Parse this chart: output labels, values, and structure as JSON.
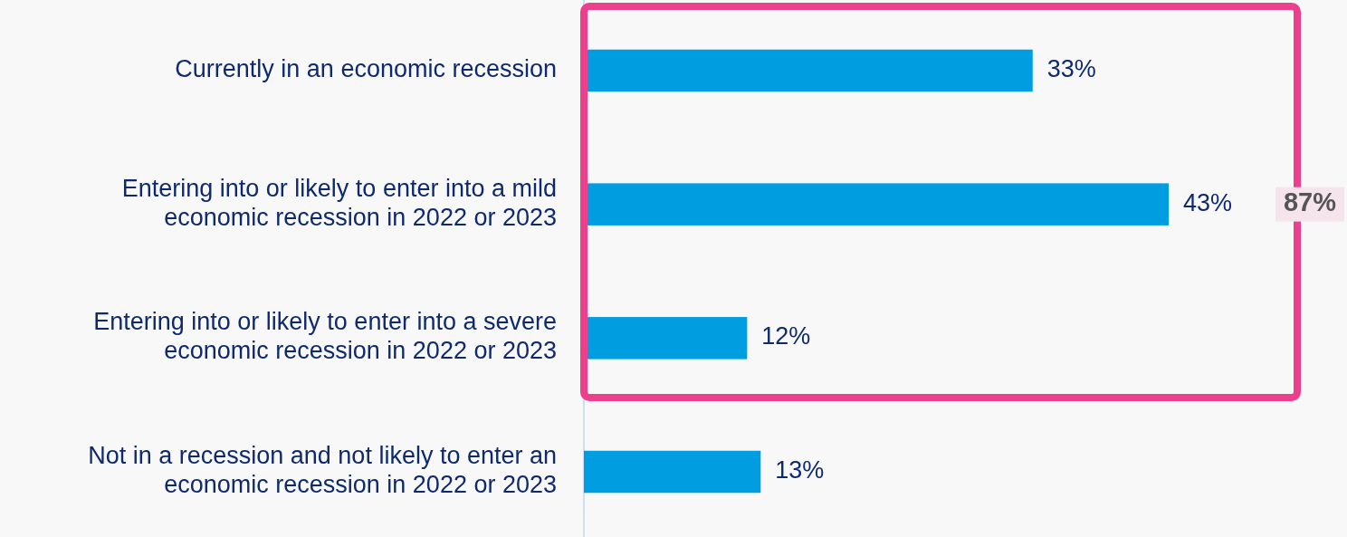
{
  "chart_data": {
    "type": "bar",
    "orientation": "horizontal",
    "categories": [
      "Currently in an economic recession",
      "Entering into or likely to enter into a mild economic recession in 2022 or 2023",
      "Entering into or likely to enter into a severe economic recession in 2022 or 2023",
      "Not in a recession and not likely to enter an economic recession in 2022 or 2023"
    ],
    "values": [
      33,
      43,
      12,
      13
    ],
    "color": "#009ee0",
    "value_labels": [
      "33%",
      "43%",
      "12%",
      "13%"
    ],
    "annotations": [
      "87%"
    ]
  }
}
